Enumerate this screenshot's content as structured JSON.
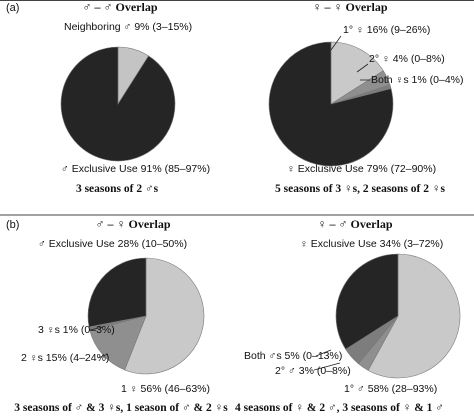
{
  "colors": {
    "exclusive": "#252525",
    "neighbor": "#c4c4c4",
    "primary": "#c9c9c9",
    "secondary": "#8f8f8f",
    "both": "#7d7d7d",
    "other_sex": "#5e5e5e",
    "edge": "#7a7a7a"
  },
  "chart_data": [
    {
      "type": "pie",
      "panel": "(a)",
      "title": "♂ – ♂ Overlap",
      "caption": "3 seasons of 2 ♂s",
      "slices": [
        {
          "key": "neighbor",
          "label": "Neighboring ♂ 9% (3–15%)",
          "value": 9
        },
        {
          "key": "exclusive",
          "label": "♂ Exclusive Use 91% (85–97%)",
          "value": 91
        }
      ]
    },
    {
      "type": "pie",
      "panel": "",
      "title": "♀ – ♀ Overlap",
      "caption": "5 seasons of 3 ♀s, 2 seasons of 2 ♀s",
      "slices": [
        {
          "key": "primary",
          "label": "1° ♀ 16% (9–26%)",
          "value": 16
        },
        {
          "key": "secondary",
          "label": "2° ♀ 4% (0–8%)",
          "value": 4
        },
        {
          "key": "both",
          "label": "Both ♀s 1% (0–4%)",
          "value": 1
        },
        {
          "key": "exclusive",
          "label": "♀ Exclusive Use 79% (72–90%)",
          "value": 79
        }
      ]
    },
    {
      "type": "pie",
      "panel": "(b)",
      "title": "♂ – ♀ Overlap",
      "caption": "3 seasons of ♂ & 3 ♀s, 1 season of ♂ & 2 ♀s",
      "slices": [
        {
          "key": "primary",
          "label": "1 ♀ 56% (46–63%)",
          "value": 56
        },
        {
          "key": "secondary",
          "label": "2 ♀s 15% (4–24%)",
          "value": 15
        },
        {
          "key": "both",
          "label": "3 ♀s 1% (0–3%)",
          "value": 1
        },
        {
          "key": "exclusive",
          "label": "♂ Exclusive Use 28% (10–50%)",
          "value": 28
        }
      ]
    },
    {
      "type": "pie",
      "panel": "",
      "title": "♀ – ♂ Overlap",
      "caption": "4 seasons of ♀ & 2 ♂, 3 seasons of ♀ & 1 ♂",
      "slices": [
        {
          "key": "primary",
          "label": "1° ♂ 58% (28–93%)",
          "value": 58
        },
        {
          "key": "secondary",
          "label": "2° ♂ 3% (0–8%)",
          "value": 3
        },
        {
          "key": "both",
          "label": "Both ♂s 5% (0–13%)",
          "value": 5
        },
        {
          "key": "exclusive",
          "label": "♀ Exclusive Use 34% (3–72%)",
          "value": 34
        }
      ]
    }
  ]
}
